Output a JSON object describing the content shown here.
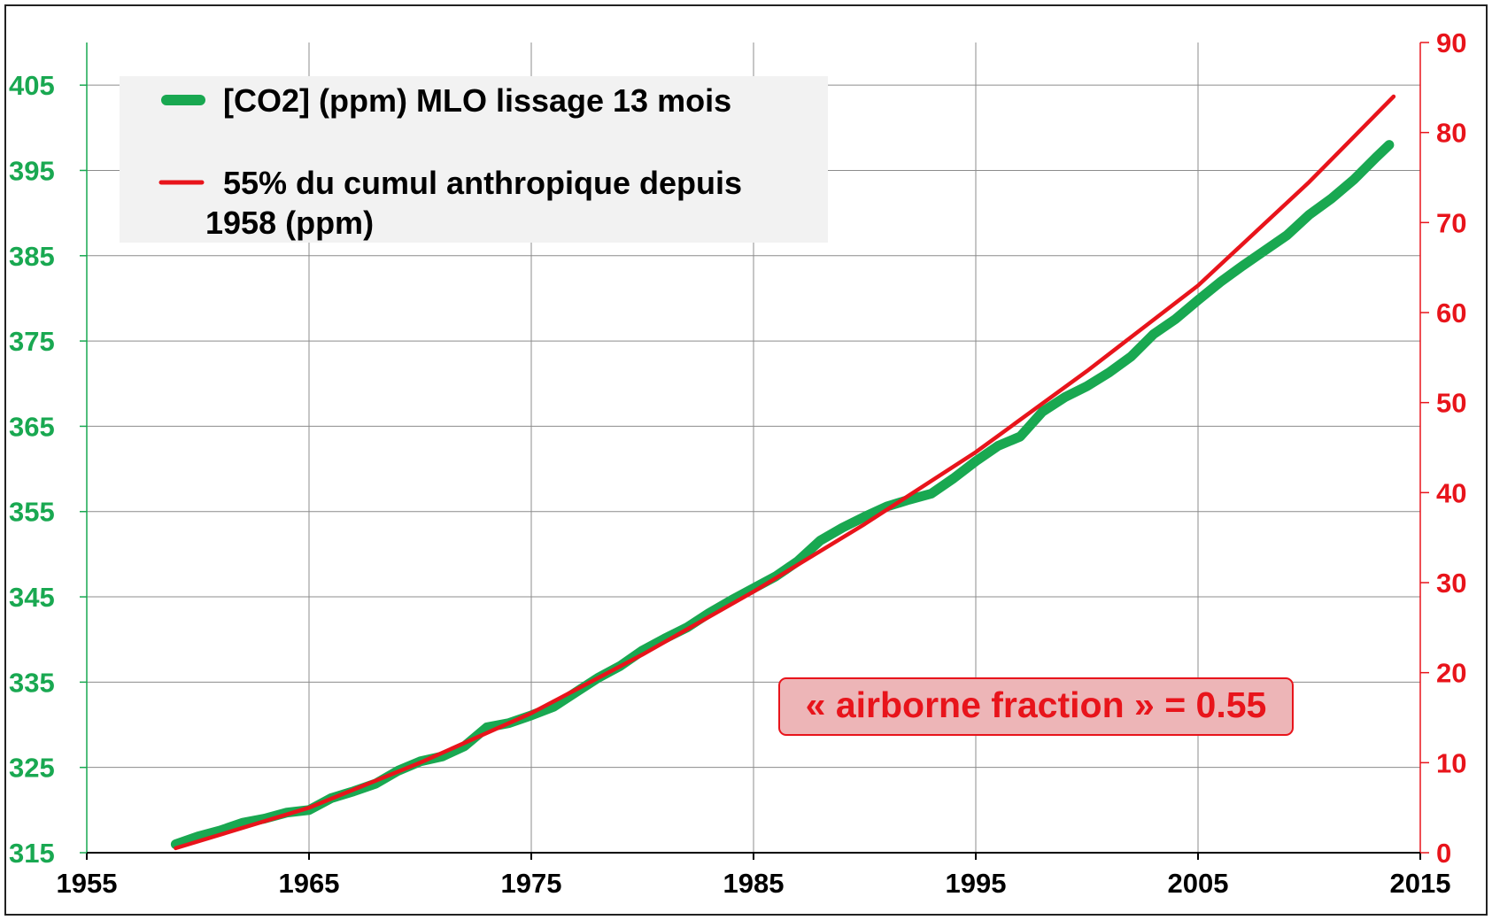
{
  "chart_data": {
    "type": "line",
    "xlim": [
      1955,
      2015
    ],
    "x_ticks": [
      "1955",
      "1965",
      "1975",
      "1985",
      "1995",
      "2005",
      "2015"
    ],
    "y_left": {
      "lim": [
        315,
        410
      ],
      "ticks": [
        "315",
        "325",
        "335",
        "345",
        "355",
        "365",
        "375",
        "385",
        "395",
        "405"
      ],
      "color": "#19A851"
    },
    "y_right": {
      "lim": [
        0,
        90
      ],
      "ticks": [
        "0",
        "10",
        "20",
        "30",
        "40",
        "50",
        "60",
        "70",
        "80",
        "90"
      ],
      "color": "#E8141B"
    },
    "grid": true,
    "legend": {
      "position": "top-left",
      "entries": [
        {
          "label": "[CO2] (ppm) MLO lissage 13 mois",
          "color": "#19A851"
        },
        {
          "label_line1": "55%  du cumul anthropique depuis",
          "label_line2": "1958 (ppm)",
          "color": "#E8141B"
        }
      ]
    },
    "annotation": "« airborne fraction » = 0.55",
    "series": [
      {
        "axis": "left",
        "color": "#19A851",
        "x": [
          1959,
          1960,
          1961,
          1962,
          1963,
          1964,
          1965,
          1966,
          1967,
          1968,
          1969,
          1970,
          1971,
          1972,
          1973,
          1974,
          1975,
          1976,
          1977,
          1978,
          1979,
          1980,
          1981,
          1982,
          1983,
          1984,
          1985,
          1986,
          1987,
          1988,
          1989,
          1990,
          1991,
          1992,
          1993,
          1994,
          1995,
          1996,
          1997,
          1998,
          1999,
          2000,
          2001,
          2002,
          2003,
          2004,
          2005,
          2006,
          2007,
          2008,
          2009,
          2010,
          2011,
          2012,
          2013,
          2013.6
        ],
        "y": [
          316.0,
          316.9,
          317.6,
          318.5,
          319.0,
          319.7,
          320.0,
          321.4,
          322.2,
          323.1,
          324.6,
          325.7,
          326.3,
          327.5,
          329.7,
          330.2,
          331.1,
          332.1,
          333.8,
          335.5,
          336.9,
          338.7,
          340.1,
          341.4,
          343.1,
          344.6,
          346.0,
          347.4,
          349.2,
          351.6,
          353.1,
          354.4,
          355.6,
          356.4,
          357.1,
          358.9,
          360.9,
          362.7,
          363.8,
          366.7,
          368.4,
          369.7,
          371.3,
          373.2,
          375.8,
          377.6,
          379.8,
          381.9,
          383.8,
          385.6,
          387.4,
          389.8,
          391.7,
          393.9,
          396.5,
          398.0
        ]
      },
      {
        "axis": "right",
        "color": "#E8141B",
        "x": [
          1959,
          1965,
          1970,
          1975,
          1980,
          1985,
          1990,
          1995,
          2000,
          2005,
          2010,
          2013.8
        ],
        "y": [
          0.5,
          5.0,
          10.0,
          15.5,
          22.0,
          29.0,
          36.5,
          44.5,
          53.5,
          63.0,
          74.5,
          84.0
        ]
      }
    ]
  }
}
